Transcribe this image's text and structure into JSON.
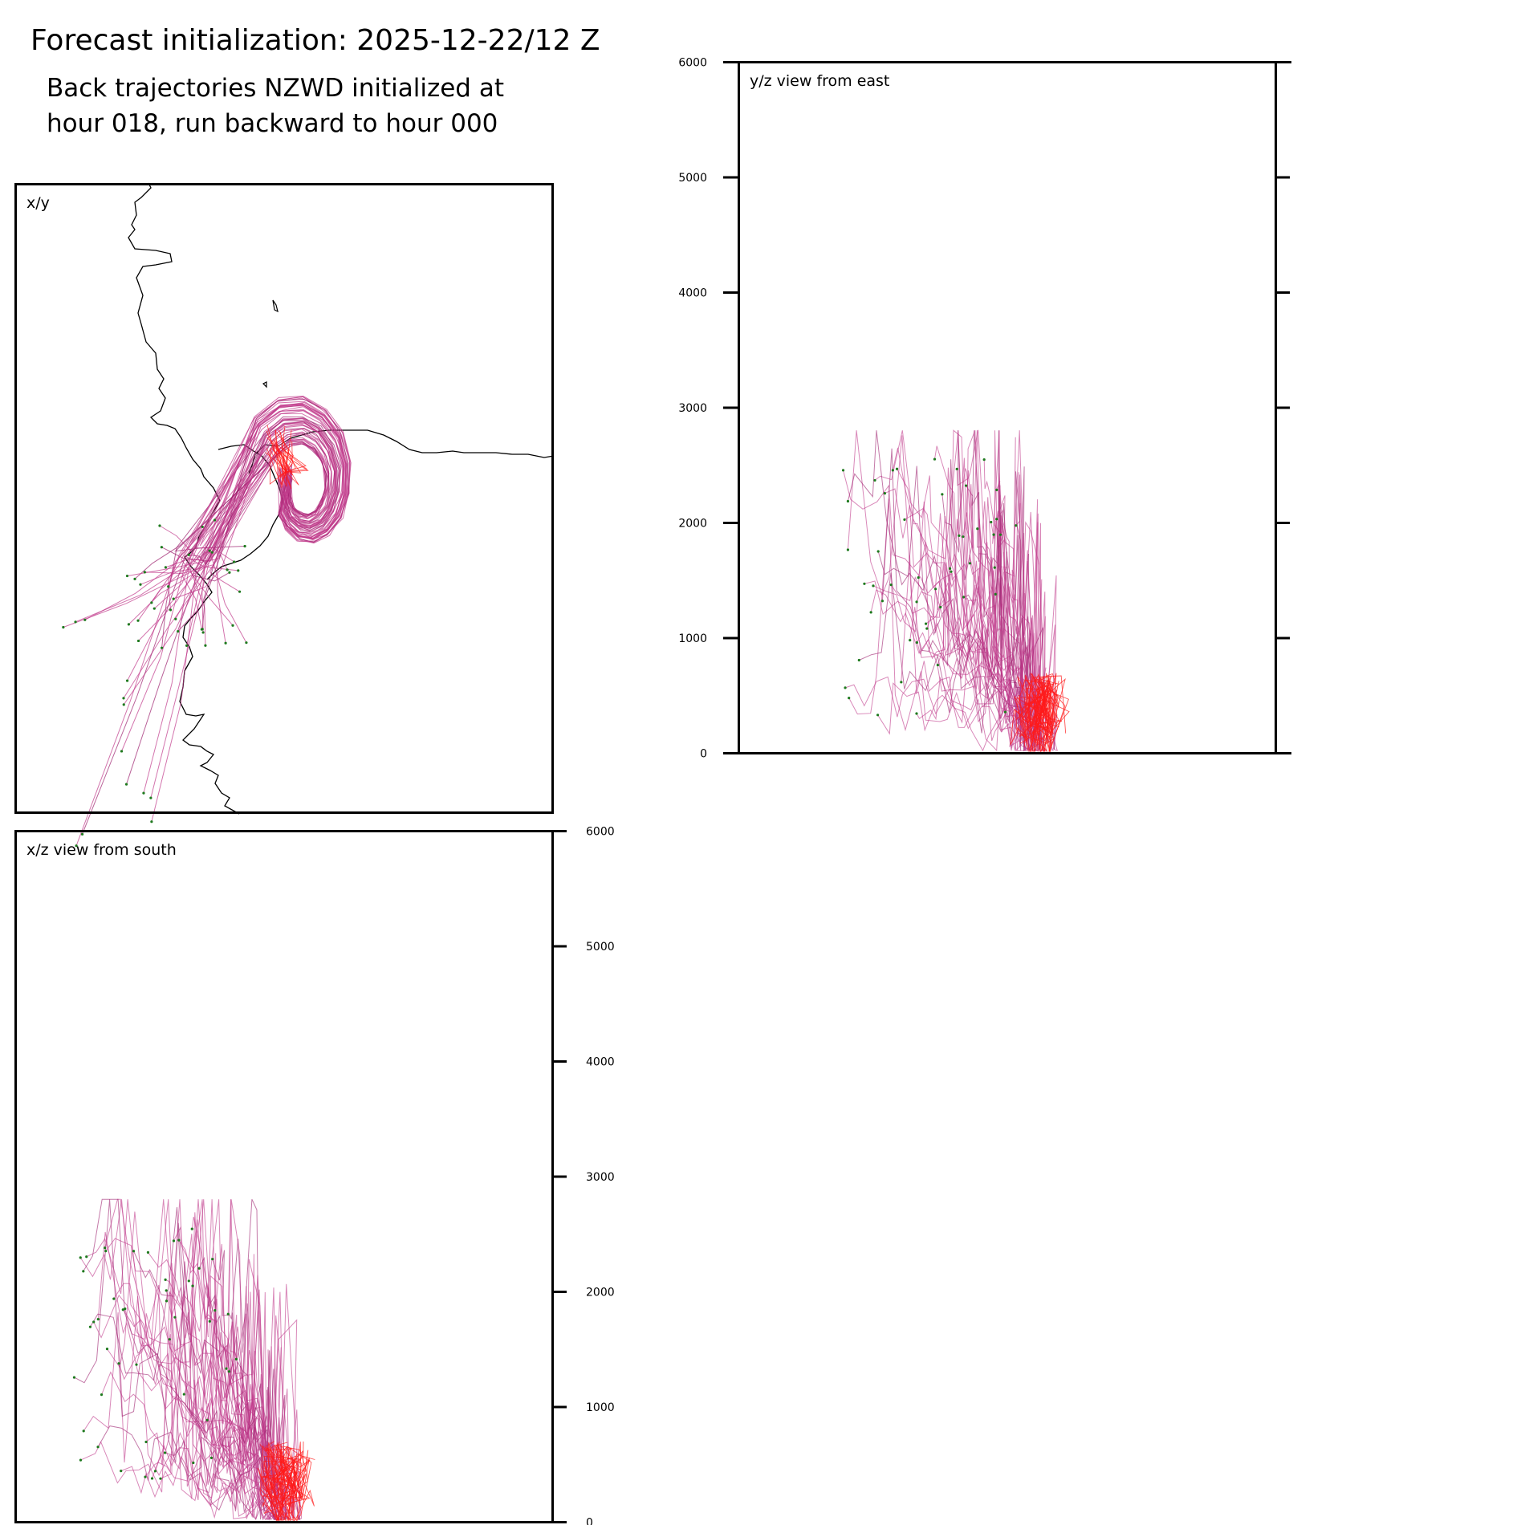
{
  "header": {
    "title": "Forecast initialization: 2025-12-22/12 Z",
    "subtitle_line1": "Back trajectories NZWD initialized at",
    "subtitle_line2": "hour 018, run backward to hour 000"
  },
  "colors": {
    "trajectory_light": "#c0398a",
    "trajectory_dark": "#9c1f6e",
    "trajectory_recent": "#ff1a1a",
    "endpoint": "#1e7a1e",
    "coastline": "#000000"
  },
  "chart_data": [
    {
      "id": "xy",
      "type": "line",
      "title": "x/y",
      "xlabel": "",
      "ylabel": "",
      "description_of_marks": "trajectory map with coastline",
      "series_count": 50
    },
    {
      "id": "yz",
      "type": "line",
      "title": "y/z view from east",
      "ylabel": "",
      "ylim": [
        0,
        6000
      ],
      "yticks": [
        0,
        1000,
        2000,
        3000,
        4000,
        5000,
        6000
      ],
      "tick_labels": [
        "0",
        "1000",
        "2000",
        "3000",
        "4000",
        "5000",
        "6000"
      ],
      "series_count": 50
    },
    {
      "id": "xz",
      "type": "line",
      "title": "x/z view from south",
      "ylabel": "",
      "ylim": [
        0,
        6000
      ],
      "yticks": [
        0,
        1000,
        2000,
        3000,
        4000,
        5000,
        6000
      ],
      "tick_labels": [
        "0",
        "1000",
        "2000",
        "3000",
        "4000",
        "5000",
        "6000"
      ],
      "series_count": 50
    }
  ]
}
